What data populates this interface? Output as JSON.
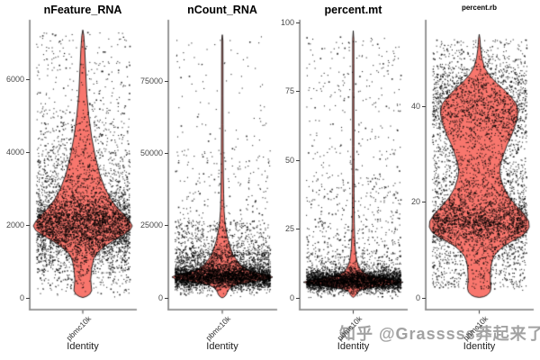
{
  "watermark": {
    "text": "知乎 @Grasssss莽起来了",
    "color": "#8e8e8e"
  },
  "colors": {
    "violin_fill": "#F8766D",
    "violin_stroke": "#161616",
    "dot": "#000000",
    "axis_y": "#454545",
    "axis_x": "#8f8f8f",
    "tick_label": "#4a4a4a",
    "background": "#ffffff"
  },
  "chart_data": [
    {
      "type": "violin",
      "title": "nFeature_RNA",
      "xlabel": "Identity",
      "categories": [
        "pbmc10k"
      ],
      "ylim": [
        0,
        7400
      ],
      "yticks": [
        0,
        2000,
        4000,
        6000
      ],
      "summary": {
        "peak_density_at": 2000,
        "max": 7300,
        "min": 30
      },
      "violin_profile": [
        [
          7350,
          0
        ],
        [
          7200,
          0.02
        ],
        [
          6800,
          0.04
        ],
        [
          6200,
          0.06
        ],
        [
          5600,
          0.08
        ],
        [
          5000,
          0.12
        ],
        [
          4400,
          0.18
        ],
        [
          3900,
          0.25
        ],
        [
          3400,
          0.34
        ],
        [
          3000,
          0.45
        ],
        [
          2700,
          0.57
        ],
        [
          2450,
          0.71
        ],
        [
          2250,
          0.86
        ],
        [
          2100,
          0.95
        ],
        [
          1975,
          1
        ],
        [
          1850,
          0.95
        ],
        [
          1700,
          0.79
        ],
        [
          1550,
          0.59
        ],
        [
          1400,
          0.43
        ],
        [
          1250,
          0.3
        ],
        [
          1100,
          0.23
        ],
        [
          950,
          0.2
        ],
        [
          800,
          0.18
        ],
        [
          650,
          0.17
        ],
        [
          500,
          0.16
        ],
        [
          350,
          0.17
        ],
        [
          200,
          0.18
        ],
        [
          100,
          0.14
        ],
        [
          40,
          0.07
        ],
        [
          10,
          0
        ]
      ],
      "jitter_mixture": [
        {
          "w": 0.58,
          "d": "normal",
          "mean": 2050,
          "sd": 430
        },
        {
          "w": 0.12,
          "d": "normal",
          "mean": 2950,
          "sd": 650
        },
        {
          "w": 0.1,
          "d": "uniform",
          "lo": 3200,
          "hi": 5200
        },
        {
          "w": 0.04,
          "d": "uniform",
          "lo": 5200,
          "hi": 7300
        },
        {
          "w": 0.13,
          "d": "normal",
          "mean": 1100,
          "sd": 430
        },
        {
          "w": 0.03,
          "d": "uniform",
          "lo": 100,
          "hi": 2000
        }
      ],
      "n_points": 4800
    },
    {
      "type": "violin",
      "title": "nCount_RNA",
      "xlabel": "Identity",
      "categories": [
        "pbmc10k"
      ],
      "ylim": [
        0,
        91500
      ],
      "yticks": [
        0,
        25000,
        50000,
        75000
      ],
      "summary": {
        "peak_density_at": 7000,
        "max": 91000,
        "min": 500
      },
      "violin_profile": [
        [
          91000,
          0
        ],
        [
          89000,
          0.012
        ],
        [
          80000,
          0.014
        ],
        [
          70000,
          0.014
        ],
        [
          60000,
          0.016
        ],
        [
          50000,
          0.018
        ],
        [
          42000,
          0.021
        ],
        [
          36000,
          0.027
        ],
        [
          30000,
          0.036
        ],
        [
          26000,
          0.054
        ],
        [
          23000,
          0.08
        ],
        [
          20000,
          0.116
        ],
        [
          17500,
          0.16
        ],
        [
          15000,
          0.21
        ],
        [
          13000,
          0.29
        ],
        [
          11500,
          0.36
        ],
        [
          10200,
          0.45
        ],
        [
          9200,
          0.57
        ],
        [
          8400,
          0.75
        ],
        [
          7800,
          0.93
        ],
        [
          7200,
          1
        ],
        [
          6600,
          0.93
        ],
        [
          6000,
          0.75
        ],
        [
          5400,
          0.54
        ],
        [
          4800,
          0.36
        ],
        [
          4200,
          0.23
        ],
        [
          3500,
          0.16
        ],
        [
          2800,
          0.125
        ],
        [
          2000,
          0.098
        ],
        [
          1200,
          0.08
        ],
        [
          600,
          0.054
        ],
        [
          200,
          0.027
        ],
        [
          50,
          0
        ]
      ],
      "jitter_mixture": [
        {
          "w": 0.66,
          "d": "normal",
          "mean": 7300,
          "sd": 2000
        },
        {
          "w": 0.12,
          "d": "normal",
          "mean": 12500,
          "sd": 3500
        },
        {
          "w": 0.1,
          "d": "uniform",
          "lo": 14000,
          "hi": 27000
        },
        {
          "w": 0.07,
          "d": "uniform",
          "lo": 9000,
          "hi": 16000
        },
        {
          "w": 0.035,
          "d": "uniform",
          "lo": 27000,
          "hi": 52000
        },
        {
          "w": 0.015,
          "d": "uniform",
          "lo": 52000,
          "hi": 91000
        }
      ],
      "n_points": 5000
    },
    {
      "type": "violin",
      "title": "percent.mt",
      "xlabel": "Identity",
      "categories": [
        "pbmc10k"
      ],
      "ylim": [
        0,
        97
      ],
      "yticks": [
        0,
        25,
        50,
        75,
        100
      ],
      "summary": {
        "peak_density_at": 6,
        "max": 96,
        "min": 0.3
      },
      "violin_profile": [
        [
          97,
          0
        ],
        [
          94,
          0.011
        ],
        [
          85,
          0.012
        ],
        [
          75,
          0.012
        ],
        [
          65,
          0.013
        ],
        [
          55,
          0.013
        ],
        [
          45,
          0.014
        ],
        [
          38,
          0.016
        ],
        [
          32,
          0.018
        ],
        [
          27,
          0.021
        ],
        [
          23,
          0.027
        ],
        [
          19,
          0.036
        ],
        [
          16,
          0.05
        ],
        [
          13.5,
          0.071
        ],
        [
          11.5,
          0.107
        ],
        [
          10,
          0.16
        ],
        [
          9,
          0.23
        ],
        [
          8.2,
          0.34
        ],
        [
          7.4,
          0.5
        ],
        [
          6.8,
          0.71
        ],
        [
          6.2,
          0.89
        ],
        [
          5.7,
          1
        ],
        [
          5.2,
          0.89
        ],
        [
          4.7,
          0.71
        ],
        [
          4.2,
          0.5
        ],
        [
          3.7,
          0.32
        ],
        [
          3.2,
          0.2
        ],
        [
          2.7,
          0.125
        ],
        [
          2.2,
          0.089
        ],
        [
          1.7,
          0.071
        ],
        [
          1.2,
          0.063
        ],
        [
          0.8,
          0.045
        ],
        [
          0.4,
          0.018
        ],
        [
          0.2,
          0
        ]
      ],
      "jitter_mixture": [
        {
          "w": 0.78,
          "d": "normal",
          "mean": 6.3,
          "sd": 1.9
        },
        {
          "w": 0.1,
          "d": "exp",
          "lo": 8,
          "mean": 6,
          "hi": 45
        },
        {
          "w": 0.07,
          "d": "uniform",
          "lo": 10,
          "hi": 45
        },
        {
          "w": 0.05,
          "d": "uniform",
          "lo": 45,
          "hi": 95
        }
      ],
      "n_points": 4600
    },
    {
      "type": "violin",
      "title": "percent.rb",
      "xlabel": "Identity",
      "categories": [
        "pbmc10k"
      ],
      "ylim": [
        0,
        55
      ],
      "yticks": [
        0,
        20,
        40
      ],
      "summary": {
        "peak_density_at": 15,
        "second_peak_at": 41,
        "max": 54.5,
        "min": 0.3
      },
      "violin_profile": [
        [
          55,
          0
        ],
        [
          54,
          0.015
        ],
        [
          52,
          0.027
        ],
        [
          50,
          0.055
        ],
        [
          48,
          0.11
        ],
        [
          46.5,
          0.2
        ],
        [
          45,
          0.33
        ],
        [
          43.5,
          0.49
        ],
        [
          42,
          0.63
        ],
        [
          40.5,
          0.74
        ],
        [
          39,
          0.78
        ],
        [
          37.5,
          0.76
        ],
        [
          36,
          0.72
        ],
        [
          34,
          0.65
        ],
        [
          32,
          0.56
        ],
        [
          30,
          0.49
        ],
        [
          28,
          0.43
        ],
        [
          26.5,
          0.41
        ],
        [
          25,
          0.43
        ],
        [
          23,
          0.49
        ],
        [
          21,
          0.6
        ],
        [
          19,
          0.76
        ],
        [
          17.5,
          0.9
        ],
        [
          16,
          0.99
        ],
        [
          14.8,
          1
        ],
        [
          13.8,
          0.95
        ],
        [
          12.8,
          0.83
        ],
        [
          11.8,
          0.65
        ],
        [
          10.8,
          0.49
        ],
        [
          9.8,
          0.38
        ],
        [
          8.8,
          0.3
        ],
        [
          7.8,
          0.26
        ],
        [
          6.5,
          0.235
        ],
        [
          5,
          0.225
        ],
        [
          3.5,
          0.225
        ],
        [
          2,
          0.235
        ],
        [
          1.2,
          0.215
        ],
        [
          0.6,
          0.16
        ],
        [
          0.25,
          0.09
        ],
        [
          0.1,
          0
        ]
      ],
      "jitter_mixture": [
        {
          "w": 0.33,
          "d": "normal",
          "mean": 15.5,
          "sd": 2.7
        },
        {
          "w": 0.25,
          "d": "normal",
          "mean": 41,
          "sd": 4.2
        },
        {
          "w": 0.13,
          "d": "normal",
          "mean": 30,
          "sd": 6.5
        },
        {
          "w": 0.12,
          "d": "normal",
          "mean": 22,
          "sd": 4.5
        },
        {
          "w": 0.09,
          "d": "uniform",
          "lo": 2,
          "hi": 11
        },
        {
          "w": 0.05,
          "d": "uniform",
          "lo": 44,
          "hi": 54
        },
        {
          "w": 0.03,
          "d": "uniform",
          "lo": 1,
          "hi": 54
        }
      ],
      "n_points": 5000
    }
  ]
}
